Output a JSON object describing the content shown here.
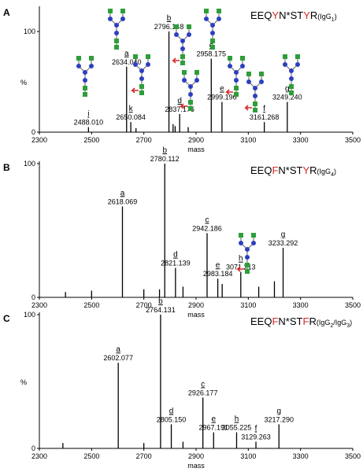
{
  "chart_data": [
    {
      "type": "bar",
      "panel": "A",
      "title_parts": [
        {
          "text": "EEQ"
        },
        {
          "text": "Y",
          "color": "#d62a2a"
        },
        {
          "text": "N*ST"
        },
        {
          "text": "Y",
          "color": "#d62a2a"
        },
        {
          "text": "R"
        }
      ],
      "subtitle_parts": [
        {
          "text": "(IgG"
        },
        {
          "text": "1",
          "sub": true
        },
        {
          "text": ")"
        }
      ],
      "x_label": "mass",
      "y_label": "%",
      "xlim": [
        2300,
        3500
      ],
      "xticks": [
        2300,
        2500,
        2700,
        2900,
        3100,
        3300,
        3500
      ],
      "ylim": [
        0,
        100
      ],
      "yticks": [
        0,
        100
      ],
      "color": "#000000",
      "x": [
        2488.01,
        2634.04,
        2650.084,
        2670,
        2796.148,
        2812,
        2820,
        2837.176,
        2870,
        2958.175,
        2999.196,
        3161.268,
        3249.24
      ],
      "values": [
        5,
        65,
        10,
        4,
        100,
        8,
        6,
        18,
        5,
        73,
        30,
        10,
        30
      ],
      "peak_letters": [
        "i",
        "a",
        "k",
        null,
        "b",
        null,
        null,
        "d",
        null,
        "c",
        "e",
        "f",
        "g"
      ],
      "x_labels": [
        "2488.010",
        "2634.040",
        "2650.084",
        null,
        "2796.148",
        null,
        null,
        "2837.176",
        null,
        "2958.175",
        "2999.196",
        "3161.268",
        "3249.240"
      ]
    },
    {
      "type": "bar",
      "panel": "B",
      "title_parts": [
        {
          "text": "EEQ"
        },
        {
          "text": "F",
          "color": "#d62a2a"
        },
        {
          "text": "N*ST"
        },
        {
          "text": "Y",
          "color": "#d62a2a"
        },
        {
          "text": "R"
        }
      ],
      "subtitle_parts": [
        {
          "text": "(IgG"
        },
        {
          "text": "4",
          "sub": true
        },
        {
          "text": ")"
        }
      ],
      "x_label": "mass",
      "xlim": [
        2300,
        3500
      ],
      "xticks": [
        2300,
        2500,
        2700,
        2900,
        3100,
        3300,
        3500
      ],
      "ylim": [
        0,
        100
      ],
      "yticks": [
        0,
        100
      ],
      "color": "#000000",
      "x": [
        2400,
        2500,
        2618.069,
        2700,
        2760,
        2780.112,
        2821.139,
        2850,
        2942.186,
        2983.184,
        3000,
        3071.213,
        3140,
        3200,
        3233.292
      ],
      "values": [
        4,
        5,
        68,
        6,
        6,
        100,
        22,
        8,
        48,
        14,
        10,
        19,
        8,
        12,
        37
      ],
      "peak_letters": [
        null,
        null,
        "a",
        null,
        null,
        "b",
        "d",
        null,
        "c",
        "e",
        null,
        "h",
        null,
        null,
        "g"
      ],
      "x_labels": [
        null,
        null,
        "2618.069",
        null,
        null,
        "2780.112",
        "2821.139",
        null,
        "2942.186",
        "2983.184",
        null,
        "3071.213",
        null,
        null,
        "3233.292"
      ]
    },
    {
      "type": "bar",
      "panel": "C",
      "title_parts": [
        {
          "text": "EEQ"
        },
        {
          "text": "F",
          "color": "#d62a2a"
        },
        {
          "text": "N*ST"
        },
        {
          "text": "F",
          "color": "#d62a2a"
        },
        {
          "text": "R"
        }
      ],
      "subtitle_parts": [
        {
          "text": "(IgG"
        },
        {
          "text": "2",
          "sub": true
        },
        {
          "text": "/IgG"
        },
        {
          "text": "3",
          "sub": true
        },
        {
          "text": ")"
        }
      ],
      "x_label": "mass",
      "y_label": "%",
      "xlim": [
        2300,
        3500
      ],
      "xticks": [
        2300,
        2500,
        2700,
        2900,
        3100,
        3300,
        3500
      ],
      "ylim": [
        0,
        100
      ],
      "yticks": [
        0,
        100
      ],
      "color": "#000000",
      "x": [
        2390,
        2602.077,
        2700,
        2764.131,
        2805.15,
        2850,
        2926.177,
        2967.191,
        3055.225,
        3129.263,
        3217.29
      ],
      "values": [
        4,
        64,
        4,
        100,
        18,
        5,
        38,
        12,
        12,
        5,
        18
      ],
      "peak_letters": [
        null,
        "a",
        null,
        "b",
        "d",
        null,
        "c",
        "e",
        "h",
        "f",
        "g"
      ],
      "x_labels": [
        null,
        "2602.077",
        null,
        "2764.131",
        "2805.150",
        null,
        "2926.177",
        "2967.191",
        "3055.225",
        "3129.263",
        "3217.290"
      ]
    }
  ]
}
